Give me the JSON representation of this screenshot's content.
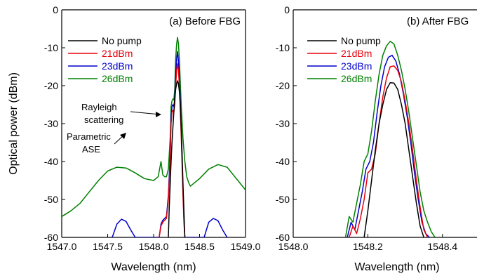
{
  "shared_ylabel": "Optical power (dBm)",
  "chart_data": [
    {
      "type": "line",
      "title": "(a) Before FBG",
      "xlabel": "Wavelength (nm)",
      "ylabel": "Optical power (dBm)",
      "xlim": [
        1547.0,
        1549.0
      ],
      "ylim": [
        -60,
        0
      ],
      "xticks": [
        "1547.0",
        "1547.5",
        "1548.0",
        "1548.5",
        "1549.0"
      ],
      "yticks": [
        "0",
        "-10",
        "-20",
        "-30",
        "-40",
        "-50",
        "-60"
      ],
      "legend_position": "top-left",
      "annotations": [
        {
          "text": [
            "Rayleigh",
            "scattering"
          ],
          "target_x": 1548.18,
          "target_y": -28
        },
        {
          "text": [
            "Parametric",
            "ASE"
          ],
          "target_x": 1547.62,
          "target_y": -42
        }
      ],
      "series": [
        {
          "name": "No pump",
          "color": "#000000",
          "x": [
            1548.16,
            1548.17,
            1548.18,
            1548.19,
            1548.2,
            1548.21,
            1548.22,
            1548.23,
            1548.24,
            1548.25,
            1548.26,
            1548.27,
            1548.28,
            1548.29,
            1548.3,
            1548.31,
            1548.32,
            1548.33,
            1548.34
          ],
          "y": [
            -60,
            -52,
            -46,
            -40,
            -35,
            -31,
            -27,
            -23.5,
            -21,
            -19.5,
            -18.7,
            -19.5,
            -21.5,
            -25,
            -31,
            -38,
            -46,
            -53,
            -60
          ]
        },
        {
          "name": "21dBm",
          "color": "#e8000b",
          "x": [
            1548.06,
            1548.08,
            1548.1,
            1548.12,
            1548.14,
            1548.16,
            1548.18,
            1548.19,
            1548.2,
            1548.21,
            1548.22,
            1548.23,
            1548.24,
            1548.25,
            1548.26,
            1548.27,
            1548.28,
            1548.29,
            1548.3,
            1548.31,
            1548.32,
            1548.33,
            1548.34
          ],
          "y": [
            -60,
            -57,
            -56,
            -55.5,
            -55,
            -50,
            -40,
            -30,
            -27,
            -26.5,
            -27,
            -25,
            -20,
            -16,
            -14.2,
            -16,
            -20,
            -26,
            -33,
            -41,
            -49,
            -56,
            -60
          ]
        },
        {
          "name": "23dBm",
          "color": "#0000cc",
          "x": [
            1547.55,
            1547.6,
            1547.65,
            1547.7,
            1547.75,
            1547.8,
            1548.06,
            1548.08,
            1548.1,
            1548.12,
            1548.14,
            1548.16,
            1548.18,
            1548.19,
            1548.2,
            1548.21,
            1548.22,
            1548.23,
            1548.24,
            1548.25,
            1548.26,
            1548.27,
            1548.28,
            1548.29,
            1548.3,
            1548.31,
            1548.32,
            1548.33,
            1548.34,
            1548.55,
            1548.6,
            1548.65,
            1548.7,
            1548.75,
            1548.8
          ],
          "y": [
            -60,
            -56.5,
            -55.2,
            -55.8,
            -58,
            -60,
            -60,
            -56.5,
            -55.5,
            -55,
            -54.5,
            -49,
            -38,
            -28,
            -25.5,
            -25,
            -25.5,
            -23.5,
            -17,
            -13,
            -11,
            -13.5,
            -17.5,
            -24,
            -31.5,
            -39.5,
            -48,
            -55,
            -60,
            -60,
            -56,
            -55,
            -55.6,
            -58,
            -60
          ]
        },
        {
          "name": "26dBm",
          "color": "#008000",
          "x": [
            1547.0,
            1547.1,
            1547.2,
            1547.3,
            1547.4,
            1547.5,
            1547.6,
            1547.7,
            1547.8,
            1547.9,
            1548.0,
            1548.05,
            1548.08,
            1548.1,
            1548.12,
            1548.14,
            1548.16,
            1548.18,
            1548.19,
            1548.2,
            1548.21,
            1548.22,
            1548.23,
            1548.24,
            1548.25,
            1548.26,
            1548.27,
            1548.28,
            1548.29,
            1548.3,
            1548.32,
            1548.34,
            1548.36,
            1548.38,
            1548.4,
            1548.5,
            1548.6,
            1548.7,
            1548.8,
            1548.9,
            1549.0
          ],
          "y": [
            -54.5,
            -53,
            -51,
            -48,
            -45,
            -42.5,
            -41.5,
            -41.7,
            -43,
            -44.5,
            -45,
            -44,
            -40,
            -43.5,
            -44,
            -44,
            -42,
            -34,
            -25.5,
            -24,
            -23.5,
            -23.8,
            -21,
            -13,
            -9,
            -7.3,
            -9,
            -13,
            -19,
            -25,
            -34,
            -40,
            -44,
            -45.5,
            -46.5,
            -44.5,
            -42,
            -40.8,
            -41.5,
            -44.5,
            -47.5
          ]
        }
      ]
    },
    {
      "type": "line",
      "title": "(b) After FBG",
      "xlabel": "Wavelength (nm)",
      "ylabel": "",
      "xlim": [
        1548.0,
        1548.5
      ],
      "ylim": [
        -60,
        0
      ],
      "xticks": [
        "1548.0",
        "1548.2",
        "1548.4"
      ],
      "yticks": [
        "0",
        "-10",
        "-20",
        "-30",
        "-40",
        "-50",
        "-60"
      ],
      "legend_position": "top-left",
      "series": [
        {
          "name": "No pump",
          "color": "#000000",
          "x": [
            1548.19,
            1548.2,
            1548.21,
            1548.22,
            1548.23,
            1548.24,
            1548.25,
            1548.26,
            1548.27,
            1548.28,
            1548.29,
            1548.3,
            1548.31,
            1548.32,
            1548.33,
            1548.34,
            1548.35
          ],
          "y": [
            -60,
            -53,
            -45,
            -37,
            -30,
            -25,
            -21,
            -19.2,
            -19.3,
            -21,
            -25,
            -30,
            -37,
            -44,
            -51,
            -57,
            -60
          ]
        },
        {
          "name": "21dBm",
          "color": "#e8000b",
          "x": [
            1548.15,
            1548.16,
            1548.17,
            1548.18,
            1548.19,
            1548.2,
            1548.21,
            1548.22,
            1548.23,
            1548.24,
            1548.25,
            1548.26,
            1548.27,
            1548.28,
            1548.29,
            1548.3,
            1548.31,
            1548.32,
            1548.33,
            1548.34,
            1548.35,
            1548.36
          ],
          "y": [
            -60,
            -57,
            -59,
            -55,
            -50,
            -43,
            -42,
            -38,
            -30,
            -23,
            -18,
            -15,
            -14.8,
            -16,
            -19,
            -24,
            -30,
            -37,
            -45,
            -52,
            -58,
            -60
          ]
        },
        {
          "name": "23dBm",
          "color": "#0000cc",
          "x": [
            1548.145,
            1548.155,
            1548.165,
            1548.175,
            1548.185,
            1548.195,
            1548.205,
            1548.215,
            1548.225,
            1548.235,
            1548.245,
            1548.255,
            1548.265,
            1548.275,
            1548.285,
            1548.295,
            1548.305,
            1548.315,
            1548.325,
            1548.335,
            1548.345,
            1548.355,
            1548.365
          ],
          "y": [
            -60,
            -56,
            -58,
            -53,
            -48,
            -42,
            -40,
            -35,
            -27,
            -20,
            -15,
            -12.5,
            -12,
            -13.5,
            -17,
            -22,
            -28,
            -35,
            -43,
            -50,
            -56,
            -59,
            -60
          ]
        },
        {
          "name": "26dBm",
          "color": "#008000",
          "x": [
            1548.14,
            1548.15,
            1548.16,
            1548.17,
            1548.18,
            1548.19,
            1548.2,
            1548.21,
            1548.22,
            1548.23,
            1548.24,
            1548.25,
            1548.26,
            1548.27,
            1548.28,
            1548.29,
            1548.3,
            1548.31,
            1548.32,
            1548.33,
            1548.34,
            1548.35,
            1548.36,
            1548.37,
            1548.38
          ],
          "y": [
            -60,
            -54.5,
            -56,
            -51,
            -46,
            -40,
            -38,
            -32,
            -24,
            -17,
            -12,
            -9.5,
            -8.3,
            -9,
            -12,
            -16,
            -21,
            -27,
            -34,
            -41,
            -48,
            -53,
            -56,
            -58.5,
            -60
          ]
        }
      ]
    }
  ]
}
